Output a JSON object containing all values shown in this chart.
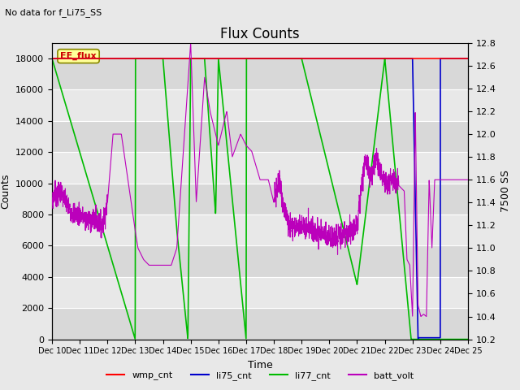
{
  "title": "Flux Counts",
  "no_data_label": "No data for f_Li75_SS",
  "ee_flux_label": "EE_flux",
  "xlabel": "Time",
  "ylabel_left": "Counts",
  "ylabel_right": "7500 SS",
  "left_ylim": [
    0,
    19000
  ],
  "right_ylim": [
    10.2,
    12.8
  ],
  "left_yticks": [
    0,
    2000,
    4000,
    6000,
    8000,
    10000,
    12000,
    14000,
    16000,
    18000
  ],
  "right_yticks": [
    10.2,
    10.4,
    10.6,
    10.8,
    11.0,
    11.2,
    11.4,
    11.6,
    11.8,
    12.0,
    12.2,
    12.4,
    12.6,
    12.8
  ],
  "xtick_labels": [
    "Dec 10",
    "Dec 11",
    "Dec 12",
    "Dec 13",
    "Dec 14",
    "Dec 15",
    "Dec 16",
    "Dec 17",
    "Dec 18",
    "Dec 19",
    "Dec 20",
    "Dec 21",
    "Dec 22",
    "Dec 23",
    "Dec 24",
    "Dec 25"
  ],
  "colors": {
    "wmp_cnt": "#ff0000",
    "li75_cnt": "#0000cc",
    "li77_cnt": "#00bb00",
    "batt_volt": "#bb00bb"
  },
  "legend_entries": [
    "wmp_cnt",
    "li75_cnt",
    "li77_cnt",
    "batt_volt"
  ],
  "background_color": "#e8e8e8",
  "band_colors": [
    "#d8d8d8",
    "#e8e8e8"
  ],
  "grid_color": "#ffffff"
}
